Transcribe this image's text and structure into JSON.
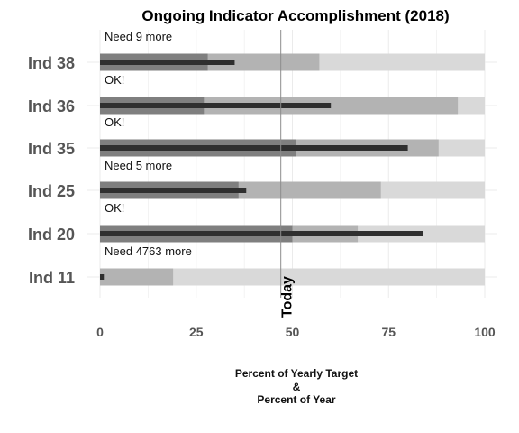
{
  "chart_data": {
    "type": "bar",
    "title": "Ongoing Indicator Accomplishment (2018)",
    "xlabel_lines": [
      "Percent of Yearly Target",
      "&",
      "Percent of Year"
    ],
    "xlim": [
      0,
      100
    ],
    "xticks": [
      0,
      25,
      50,
      75,
      100
    ],
    "grid": true,
    "today_label": "Today",
    "today_value": 47,
    "categories": [
      "Ind 38",
      "Ind 36",
      "Ind 35",
      "Ind 25",
      "Ind 20",
      "Ind 11"
    ],
    "range_max": [
      100,
      100,
      100,
      100,
      100,
      100
    ],
    "range_mid": [
      57,
      93,
      88,
      73,
      67,
      19
    ],
    "range_low": [
      28,
      27,
      51,
      36,
      50,
      0
    ],
    "actual": [
      35,
      60,
      80,
      38,
      84,
      1
    ],
    "notes": [
      "Need 9 more",
      "OK!",
      "OK!",
      "Need 5 more",
      "OK!",
      "Need 4763 more"
    ],
    "colors": {
      "range_max": "#d9d9d9",
      "range_mid": "#b3b3b3",
      "range_low": "#7f7f7f",
      "actual": "#2f2f2f",
      "today_line": "#8c8c8c",
      "grid": "#ebebeb"
    }
  }
}
